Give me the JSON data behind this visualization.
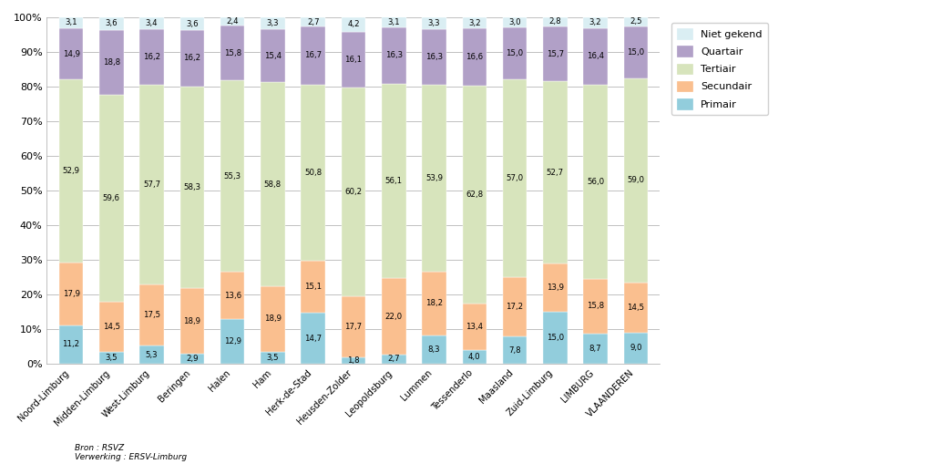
{
  "categories": [
    "Noord-Limburg",
    "Midden-Limburg",
    "West-Limburg",
    "Beringen",
    "Halen",
    "Ham",
    "Herk-de-Stad",
    "Heusden-Zolder",
    "Leopoldsburg",
    "Lummen",
    "Tessenderlo",
    "Maasland",
    "Zuid-Limburg",
    "LIMBURG",
    "VLAANDEREN"
  ],
  "primair": [
    11.2,
    3.5,
    5.3,
    2.9,
    12.9,
    3.5,
    14.7,
    1.8,
    2.7,
    8.3,
    4.0,
    7.8,
    15.0,
    8.7,
    9.0
  ],
  "secundair": [
    17.9,
    14.5,
    17.5,
    18.9,
    13.6,
    18.9,
    15.1,
    17.7,
    22.0,
    18.2,
    13.4,
    17.2,
    13.9,
    15.8,
    14.5
  ],
  "tertiair": [
    52.9,
    59.6,
    57.7,
    58.3,
    55.3,
    58.8,
    50.8,
    60.2,
    56.1,
    53.9,
    62.8,
    57.0,
    52.7,
    56.0,
    59.0
  ],
  "quartair": [
    14.9,
    18.8,
    16.2,
    16.2,
    15.8,
    15.4,
    16.7,
    16.1,
    16.3,
    16.3,
    16.6,
    15.0,
    15.7,
    16.4,
    15.0
  ],
  "niet_gekend": [
    3.1,
    3.6,
    3.4,
    3.6,
    2.4,
    3.3,
    2.7,
    4.2,
    3.1,
    3.3,
    3.2,
    3.0,
    2.8,
    3.2,
    2.5
  ],
  "color_primair": "#92cddc",
  "color_secundair": "#fabf8f",
  "color_tertiair": "#d7e4bc",
  "color_quartair": "#b1a0c7",
  "color_niet_gekend": "#daeef3",
  "color_primair_dark": "#31849b",
  "color_secundair_dark": "#e26b0a",
  "color_tertiair_dark": "#76933c",
  "color_quartair_dark": "#60497a",
  "color_niet_gekend_dark": "#4bacc6",
  "source_text": "Bron : RSVZ\nVerwerking : ERSV-Limburg",
  "bar_width": 0.6,
  "figsize": [
    10.23,
    5.09
  ],
  "dpi": 100
}
